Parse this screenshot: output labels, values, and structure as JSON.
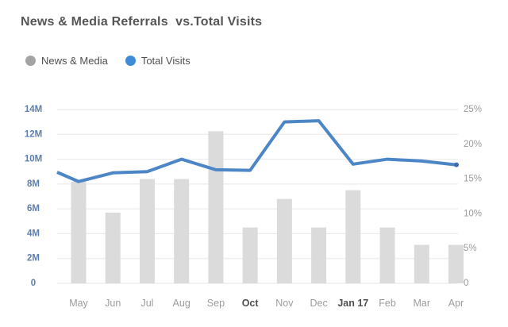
{
  "title": "News & Media Referrals  vs.Total Visits",
  "legend": {
    "items": [
      {
        "label": "News & Media",
        "color": "#a3a3a3"
      },
      {
        "label": "Total Visits",
        "color": "#3e8bd8"
      }
    ]
  },
  "colors": {
    "background": "#ffffff",
    "title_text": "#565656",
    "legend_text": "#4f4f4f",
    "bar_fill": "#dbdbdb",
    "line_stroke": "#4c86c6",
    "line_end_dot": "#3d6fae",
    "grid_line": "#ebebeb",
    "axis_left_labels": "#5d7fae",
    "axis_right_labels": "#9b9b9b",
    "month_label": "#9c9c9c",
    "month_label_bold": "#4f4f4f"
  },
  "chart_data": {
    "type": "bar",
    "subtype": "bar-and-line-combo",
    "title": "News & Media Referrals  vs.Total Visits",
    "categories": [
      "May",
      "Jun",
      "Jul",
      "Aug",
      "Sep",
      "Oct",
      "Nov",
      "Dec",
      "Jan 17",
      "Feb",
      "Mar",
      "Apr"
    ],
    "bold_categories": [
      "Oct",
      "Jan 17"
    ],
    "series": [
      {
        "name": "News & Media",
        "type": "bar",
        "unit": "M visits (left axis scale)",
        "values": [
          8.2,
          5.7,
          8.4,
          8.4,
          12.25,
          4.5,
          6.8,
          4.5,
          7.5,
          4.5,
          3.1,
          3.1
        ]
      },
      {
        "name": "Total Visits",
        "type": "line",
        "unit": "M visits (left axis scale)",
        "values": [
          8.2,
          8.9,
          9.0,
          10.0,
          9.15,
          9.1,
          13.0,
          13.1,
          9.6,
          10.0,
          9.85,
          9.55
        ],
        "edge_start_value": 8.95,
        "edge_end_value": 9.55
      }
    ],
    "left_axis": {
      "ticks": [
        "14M",
        "12M",
        "10M",
        "8M",
        "6M",
        "4M",
        "2M",
        "0"
      ],
      "tick_values": [
        14,
        12,
        10,
        8,
        6,
        4,
        2,
        0
      ],
      "min": 0,
      "max": 14
    },
    "right_axis": {
      "ticks": [
        "25%",
        "20%",
        "15%",
        "10%",
        "5%",
        "0"
      ],
      "tick_values": [
        25,
        20,
        15,
        10,
        5,
        0
      ],
      "min": 0,
      "max": 25
    },
    "grid": true,
    "legend_position": "top-left"
  }
}
